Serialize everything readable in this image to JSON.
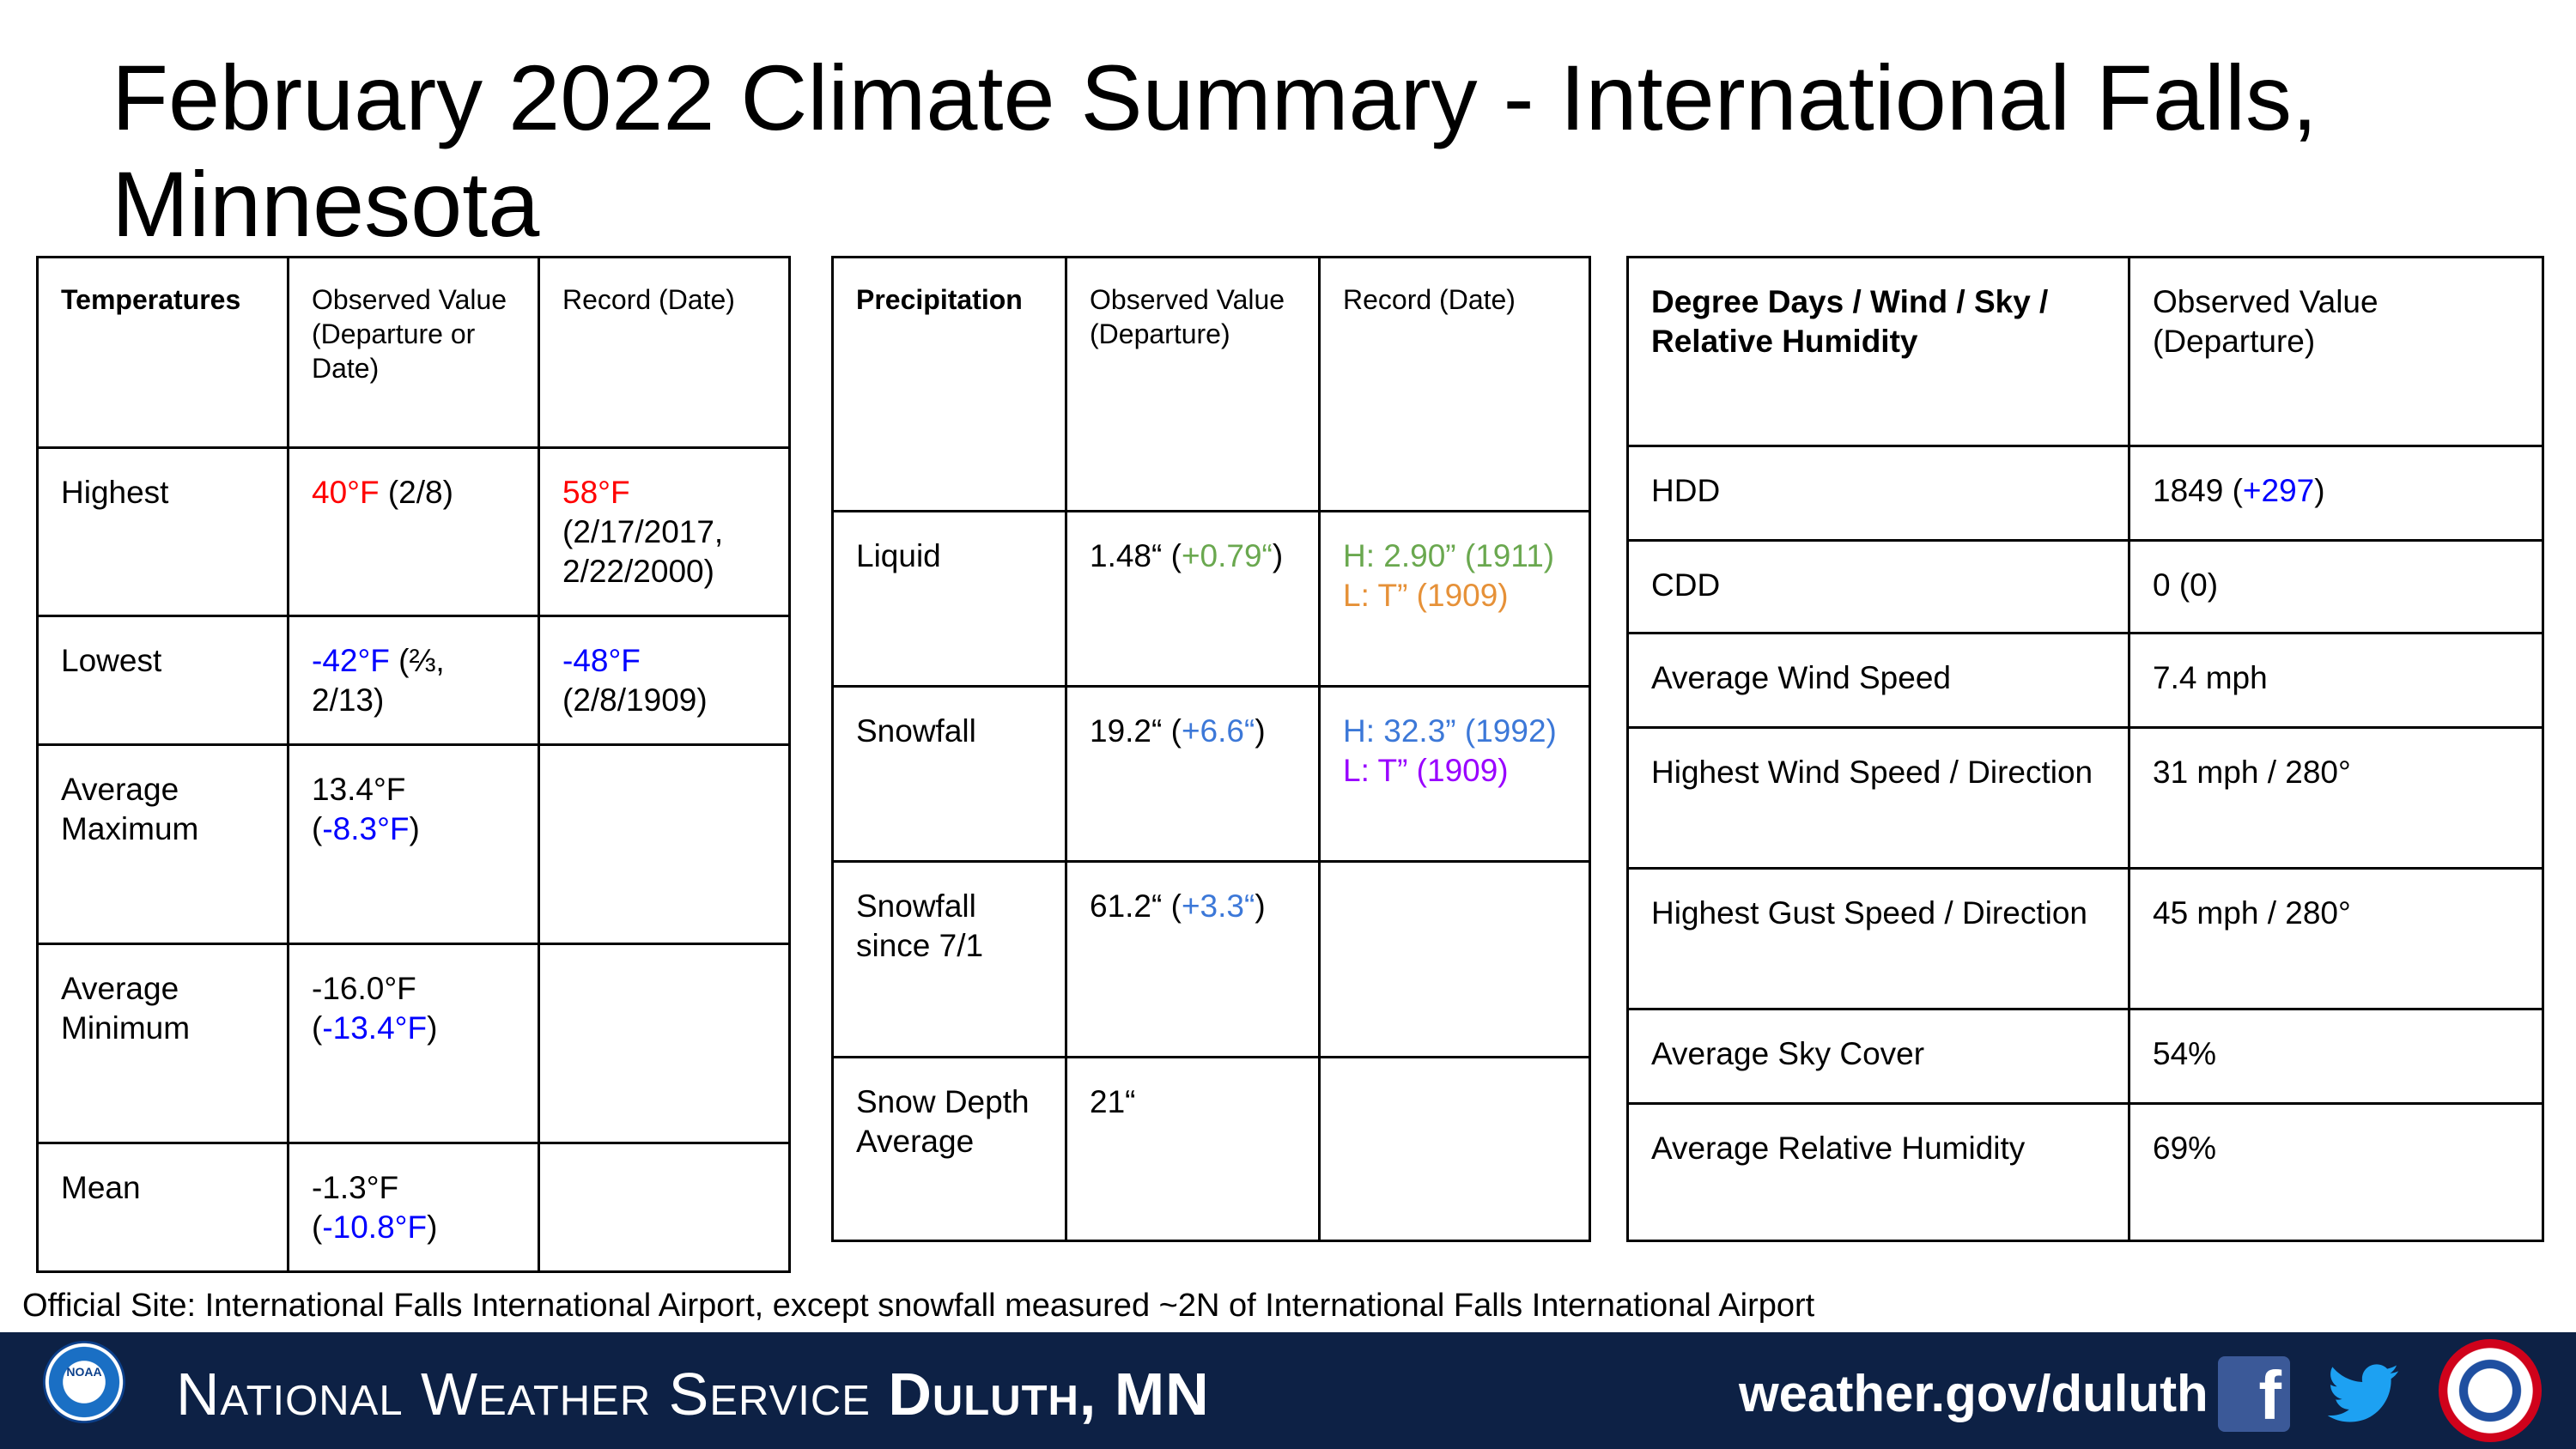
{
  "title": "February 2022 Climate Summary - International Falls, Minnesota",
  "temperatures": {
    "headers": [
      "Temperatures",
      "Observed Value (Departure or Date)",
      "Record (Date)"
    ],
    "rows": [
      {
        "label": "Highest",
        "obs_value": "40°F",
        "obs_extra": " (2/8)",
        "rec_value": "58°F",
        "rec_extra": "(2/17/2017, 2/22/2000)"
      },
      {
        "label": "Lowest",
        "obs_value": "-42°F",
        "obs_extra": " (⅔, 2/13)",
        "rec_value": "-48°F",
        "rec_extra": "(2/8/1909)"
      },
      {
        "label": "Average Maximum",
        "obs_pre": "13.4°F (",
        "obs_dep": "-8.3°F",
        "obs_post": ")"
      },
      {
        "label": "Average Minimum",
        "obs_pre": "-16.0°F (",
        "obs_dep": "-13.4°F",
        "obs_post": ")"
      },
      {
        "label": "Mean",
        "obs_pre": "-1.3°F (",
        "obs_dep": "-10.8°F",
        "obs_post": ")"
      }
    ]
  },
  "precipitation": {
    "headers": [
      "Precipitation",
      "Observed Value (Departure)",
      "Record (Date)"
    ],
    "rows": [
      {
        "label": "Liquid",
        "obs_pre": "1.48“ (",
        "obs_dep": "+0.79“",
        "obs_post": ")",
        "rec_high": "H: 2.90” (1911)",
        "rec_low": "L: T” (1909)"
      },
      {
        "label": "Snowfall",
        "obs_pre": "19.2“ (",
        "obs_dep": "+6.6“",
        "obs_post": ")",
        "rec_high": "H: 32.3” (1992)",
        "rec_low": "L: T” (1909)"
      },
      {
        "label": "Snowfall since 7/1",
        "obs_pre": "61.2“ (",
        "obs_dep": "+3.3“",
        "obs_post": ")"
      },
      {
        "label": "Snow Depth Average",
        "obs_pre": "21“"
      }
    ]
  },
  "degree_days": {
    "headers": [
      "Degree Days / Wind / Sky / Relative Humidity",
      "Observed Value (Departure)"
    ],
    "rows": [
      {
        "label": "HDD",
        "value_pre": "1849 (",
        "value_dep": "+297",
        "value_post": ")"
      },
      {
        "label": "CDD",
        "value_pre": "0 (0)"
      },
      {
        "label": "Average Wind Speed",
        "value_pre": "7.4 mph"
      },
      {
        "label": "Highest Wind Speed / Direction",
        "value_pre": "31 mph / 280°"
      },
      {
        "label": "Highest Gust Speed / Direction",
        "value_pre": "45 mph / 280°"
      },
      {
        "label": "Average Sky Cover",
        "value_pre": "54%"
      },
      {
        "label": "Average Relative Humidity",
        "value_pre": "69%"
      }
    ]
  },
  "footnote": "Official Site: International Falls International Airport, except snowfall measured ~2N of International Falls International Airport",
  "banner": {
    "noaa_label": "NOAA",
    "org_text": "National Weather Service",
    "office_text": "Duluth, MN",
    "url": "weather.gov/duluth",
    "facebook_letter": "f"
  },
  "colors": {
    "banner_bg": "#0d2145",
    "record_high": "#ff0000",
    "departure_negative": "#0000ff",
    "departure_positive": "#3c78d8",
    "precip_departure": "#6aa84f",
    "record_low_liquid": "#e69138",
    "record_low_snow": "#9900ff"
  },
  "icons": [
    "noaa-logo-icon",
    "facebook-icon",
    "twitter-icon",
    "nws-seal-icon"
  ]
}
